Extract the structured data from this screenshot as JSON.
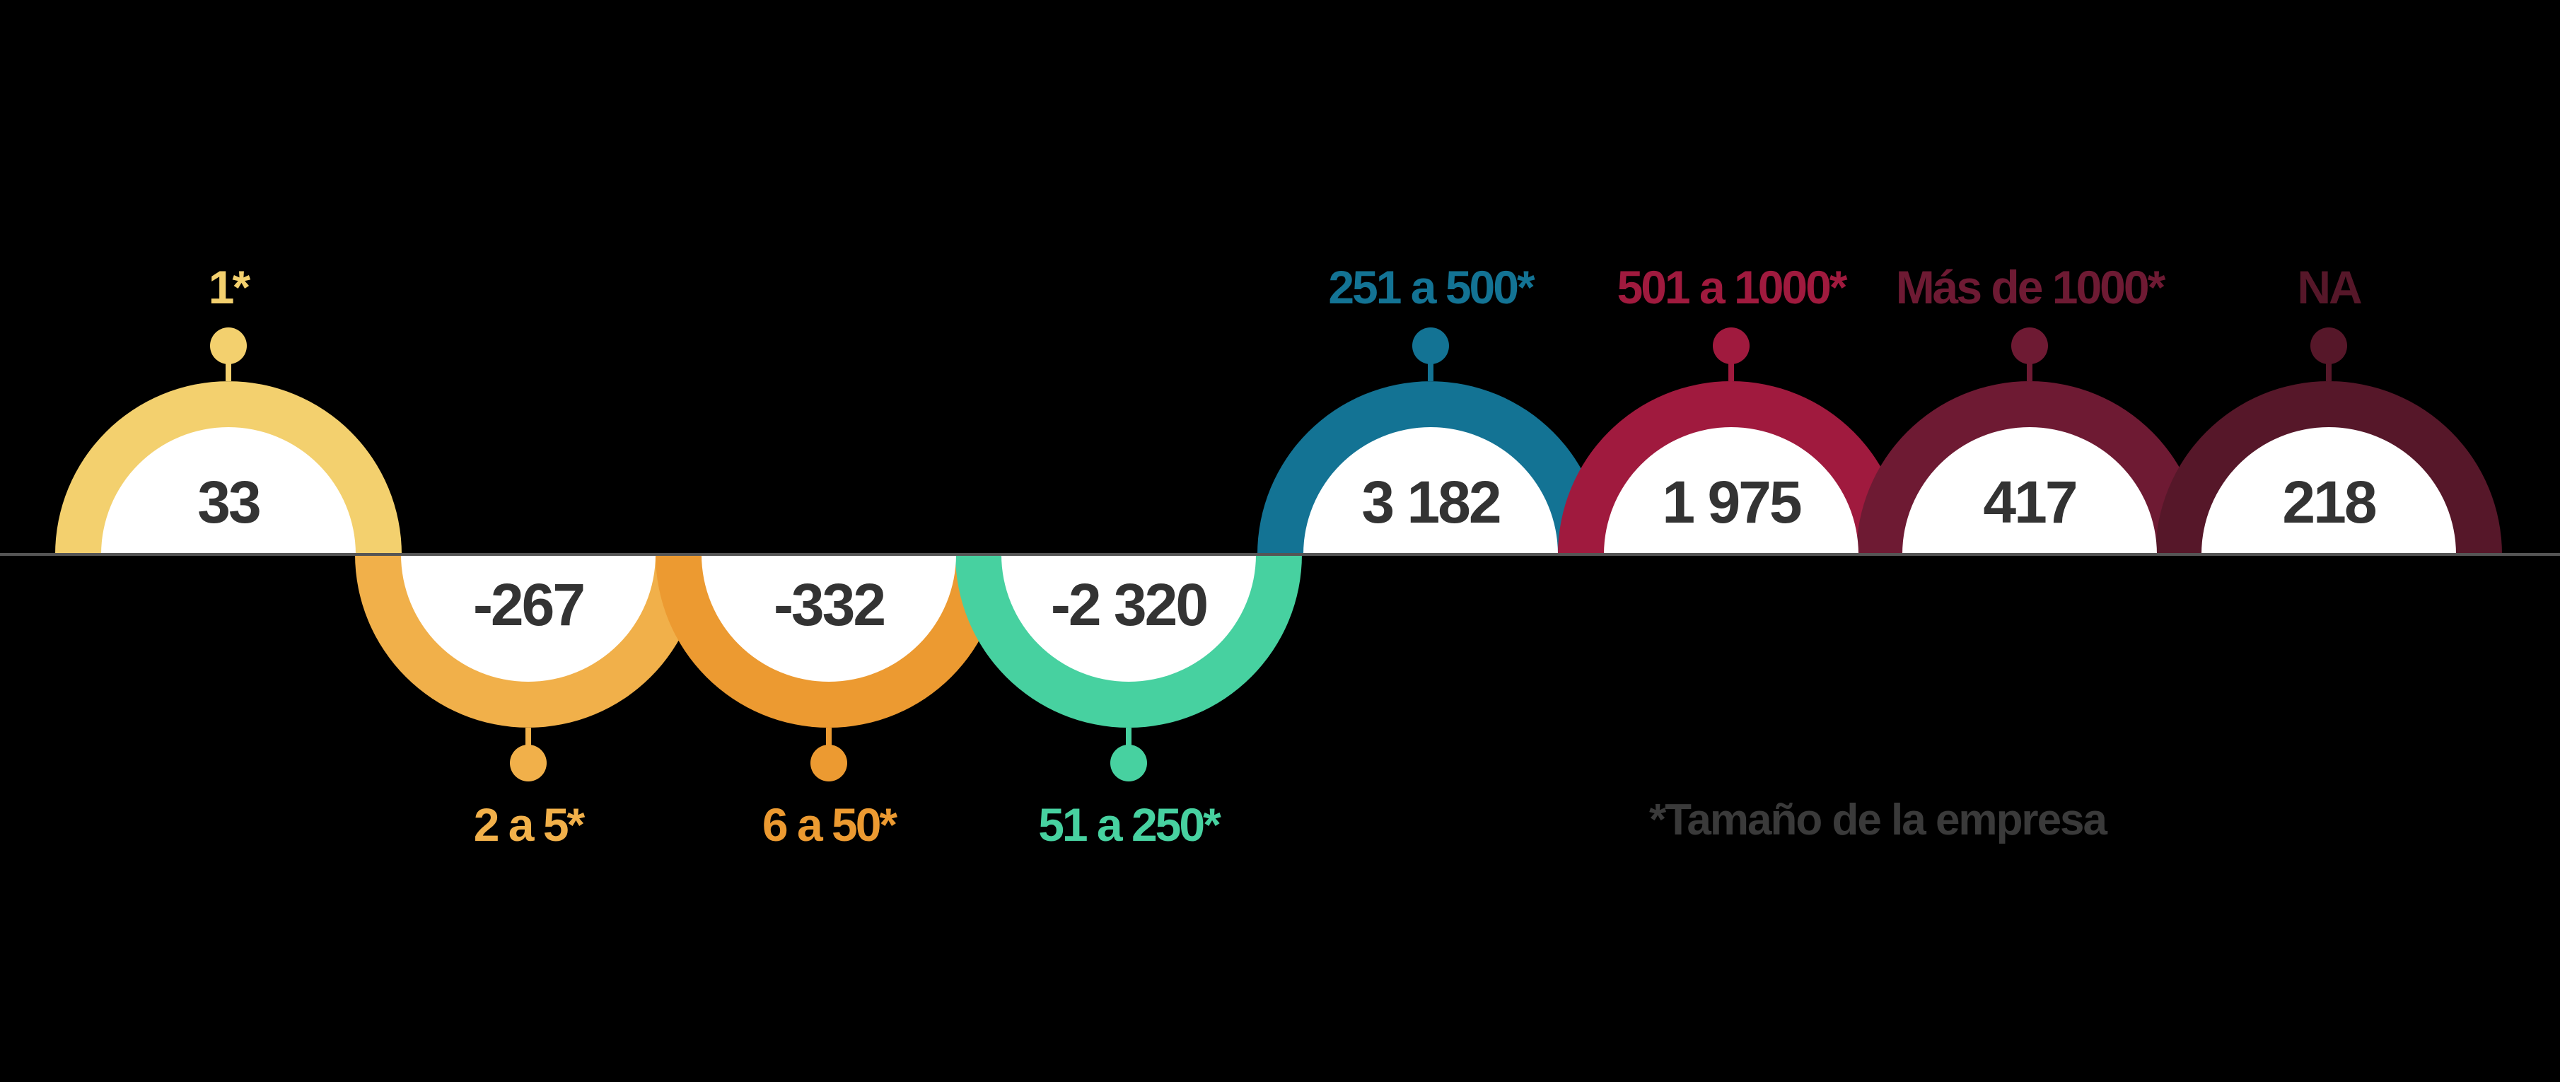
{
  "chart_data": {
    "type": "bar",
    "categories": [
      "1*",
      "2 a 5*",
      "6 a 50*",
      "51 a 250*",
      "251 a 500*",
      "501 a 1000*",
      "Más de 1000*",
      "NA"
    ],
    "values": [
      33,
      -267,
      -332,
      -2320,
      3182,
      1975,
      417,
      218
    ],
    "value_labels": [
      "33",
      "-267",
      "-332",
      "-2 320",
      "3 182",
      "1 975",
      "417",
      "218"
    ],
    "colors": [
      "#F3D06E",
      "#F1B04A",
      "#EC9A31",
      "#47D1A0",
      "#137394",
      "#A01A3E",
      "#6E1A33",
      "#561729"
    ],
    "footnote": "*Tamaño de la empresa",
    "baseline_color": "#555555",
    "title": "",
    "xlabel": "",
    "ylabel": ""
  }
}
